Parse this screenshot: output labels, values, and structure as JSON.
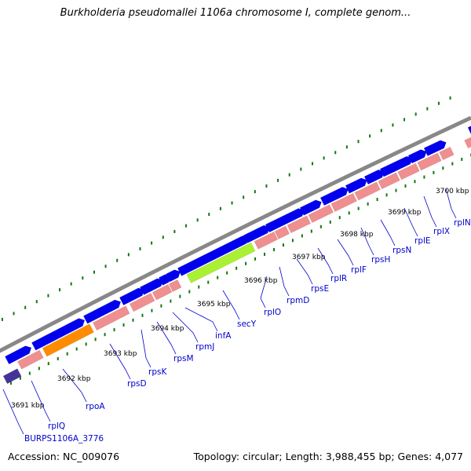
{
  "title": "Burkholderia pseudomallei 1106a chromosome I, complete genom...",
  "footer": {
    "accession": "Accession: NC_009076",
    "summary": "Topology: circular; Length: 3,988,455 bp; Genes: 4,077"
  },
  "colors": {
    "gene_block": "#0000ee",
    "rna_block": "#ef8f8f",
    "highlight_green": "#aaf033",
    "highlight_orange": "#ff8c00",
    "dark_gene": "#443399",
    "backbone": "#888888",
    "tick_dots": "#117711",
    "gene_label": "#0000cc"
  },
  "kbp_labels": [
    "3691 kbp",
    "3692 kbp",
    "3693 kbp",
    "3694 kbp",
    "3695 kbp",
    "3696 kbp",
    "3697 kbp",
    "3698 kbp",
    "3699 kbp",
    "3700 kbp"
  ],
  "gene_labels": [
    "BURPS1106A_3776",
    "rplQ",
    "rpoA",
    "rpsD",
    "rpsK",
    "rpsM",
    "rpmJ",
    "infA",
    "secY",
    "rplO",
    "rpmD",
    "rpsE",
    "rplR",
    "rplF",
    "rpsH",
    "rpsN",
    "rplE",
    "rplX",
    "rplN"
  ]
}
